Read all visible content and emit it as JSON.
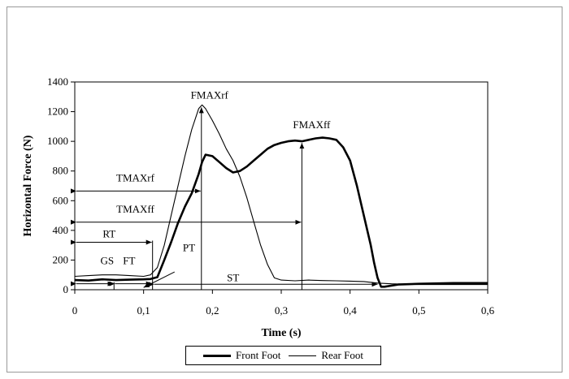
{
  "chart_data": {
    "type": "line",
    "xlabel": "Time (s)",
    "ylabel": "Horizontal Force (N)",
    "xlim": [
      0,
      0.6
    ],
    "ylim": [
      0,
      1400
    ],
    "xticks": [
      0,
      0.1,
      0.2,
      0.3,
      0.4,
      0.5,
      0.6
    ],
    "xtick_labels": [
      "0",
      "0,1",
      "0,2",
      "0,3",
      "0,4",
      "0,5",
      "0,6"
    ],
    "yticks": [
      0,
      200,
      400,
      600,
      800,
      1000,
      1200,
      1400
    ],
    "ytick_labels": [
      "0",
      "200",
      "400",
      "600",
      "800",
      "1000",
      "1200",
      "1400"
    ],
    "grid": false,
    "legend_position": "bottom",
    "series": [
      {
        "name": "Front Foot",
        "style": "thick",
        "color": "#000000",
        "points": [
          [
            0,
            65
          ],
          [
            0.02,
            62
          ],
          [
            0.04,
            70
          ],
          [
            0.06,
            65
          ],
          [
            0.08,
            68
          ],
          [
            0.1,
            70
          ],
          [
            0.11,
            72
          ],
          [
            0.12,
            85
          ],
          [
            0.13,
            200
          ],
          [
            0.14,
            320
          ],
          [
            0.15,
            450
          ],
          [
            0.16,
            560
          ],
          [
            0.17,
            650
          ],
          [
            0.18,
            780
          ],
          [
            0.185,
            860
          ],
          [
            0.19,
            910
          ],
          [
            0.2,
            900
          ],
          [
            0.21,
            860
          ],
          [
            0.22,
            820
          ],
          [
            0.23,
            790
          ],
          [
            0.24,
            800
          ],
          [
            0.25,
            830
          ],
          [
            0.26,
            870
          ],
          [
            0.27,
            910
          ],
          [
            0.28,
            950
          ],
          [
            0.29,
            975
          ],
          [
            0.3,
            990
          ],
          [
            0.31,
            1000
          ],
          [
            0.32,
            1005
          ],
          [
            0.33,
            1000
          ],
          [
            0.34,
            1010
          ],
          [
            0.35,
            1020
          ],
          [
            0.36,
            1025
          ],
          [
            0.37,
            1020
          ],
          [
            0.38,
            1010
          ],
          [
            0.39,
            960
          ],
          [
            0.4,
            870
          ],
          [
            0.41,
            700
          ],
          [
            0.42,
            500
          ],
          [
            0.43,
            300
          ],
          [
            0.435,
            180
          ],
          [
            0.44,
            80
          ],
          [
            0.445,
            20
          ],
          [
            0.45,
            20
          ],
          [
            0.47,
            35
          ],
          [
            0.5,
            40
          ],
          [
            0.55,
            45
          ],
          [
            0.6,
            45
          ]
        ]
      },
      {
        "name": "Rear Foot",
        "style": "thin",
        "color": "#000000",
        "points": [
          [
            0,
            90
          ],
          [
            0.02,
            95
          ],
          [
            0.04,
            100
          ],
          [
            0.06,
            100
          ],
          [
            0.08,
            95
          ],
          [
            0.1,
            90
          ],
          [
            0.11,
            100
          ],
          [
            0.12,
            150
          ],
          [
            0.13,
            300
          ],
          [
            0.14,
            500
          ],
          [
            0.15,
            700
          ],
          [
            0.16,
            900
          ],
          [
            0.17,
            1080
          ],
          [
            0.18,
            1220
          ],
          [
            0.185,
            1245
          ],
          [
            0.19,
            1220
          ],
          [
            0.2,
            1140
          ],
          [
            0.21,
            1050
          ],
          [
            0.22,
            950
          ],
          [
            0.23,
            870
          ],
          [
            0.24,
            760
          ],
          [
            0.25,
            620
          ],
          [
            0.26,
            460
          ],
          [
            0.27,
            300
          ],
          [
            0.28,
            170
          ],
          [
            0.29,
            80
          ],
          [
            0.3,
            65
          ],
          [
            0.32,
            60
          ],
          [
            0.34,
            65
          ],
          [
            0.36,
            62
          ],
          [
            0.38,
            60
          ],
          [
            0.4,
            58
          ],
          [
            0.42,
            55
          ],
          [
            0.44,
            45
          ],
          [
            0.46,
            40
          ],
          [
            0.5,
            35
          ],
          [
            0.55,
            35
          ],
          [
            0.6,
            35
          ]
        ]
      }
    ],
    "annotations": [
      {
        "label": "FMAXrf",
        "x": 0.184,
        "y": 1245
      },
      {
        "label": "FMAXff",
        "x": 0.33,
        "y": 1005
      },
      {
        "label": "TMAXrf",
        "x_start": 0,
        "x_end": 0.184,
        "y": 665
      },
      {
        "label": "TMAXff",
        "x_start": 0,
        "x_end": 0.33,
        "y": 455
      },
      {
        "label": "RT",
        "x_start": 0,
        "x_end": 0.113,
        "y": 320
      },
      {
        "label": "GS",
        "x_start": 0,
        "x_end": 0.057,
        "y": 40
      },
      {
        "label": "FT",
        "x_start": 0.057,
        "x_end": 0.113,
        "y": 40
      },
      {
        "label": "PT",
        "x_start": 0.113,
        "x_end": 0.184,
        "y": 40
      },
      {
        "label": "ST",
        "x_start": 0.113,
        "x_end": 0.44,
        "y": 15
      }
    ]
  }
}
